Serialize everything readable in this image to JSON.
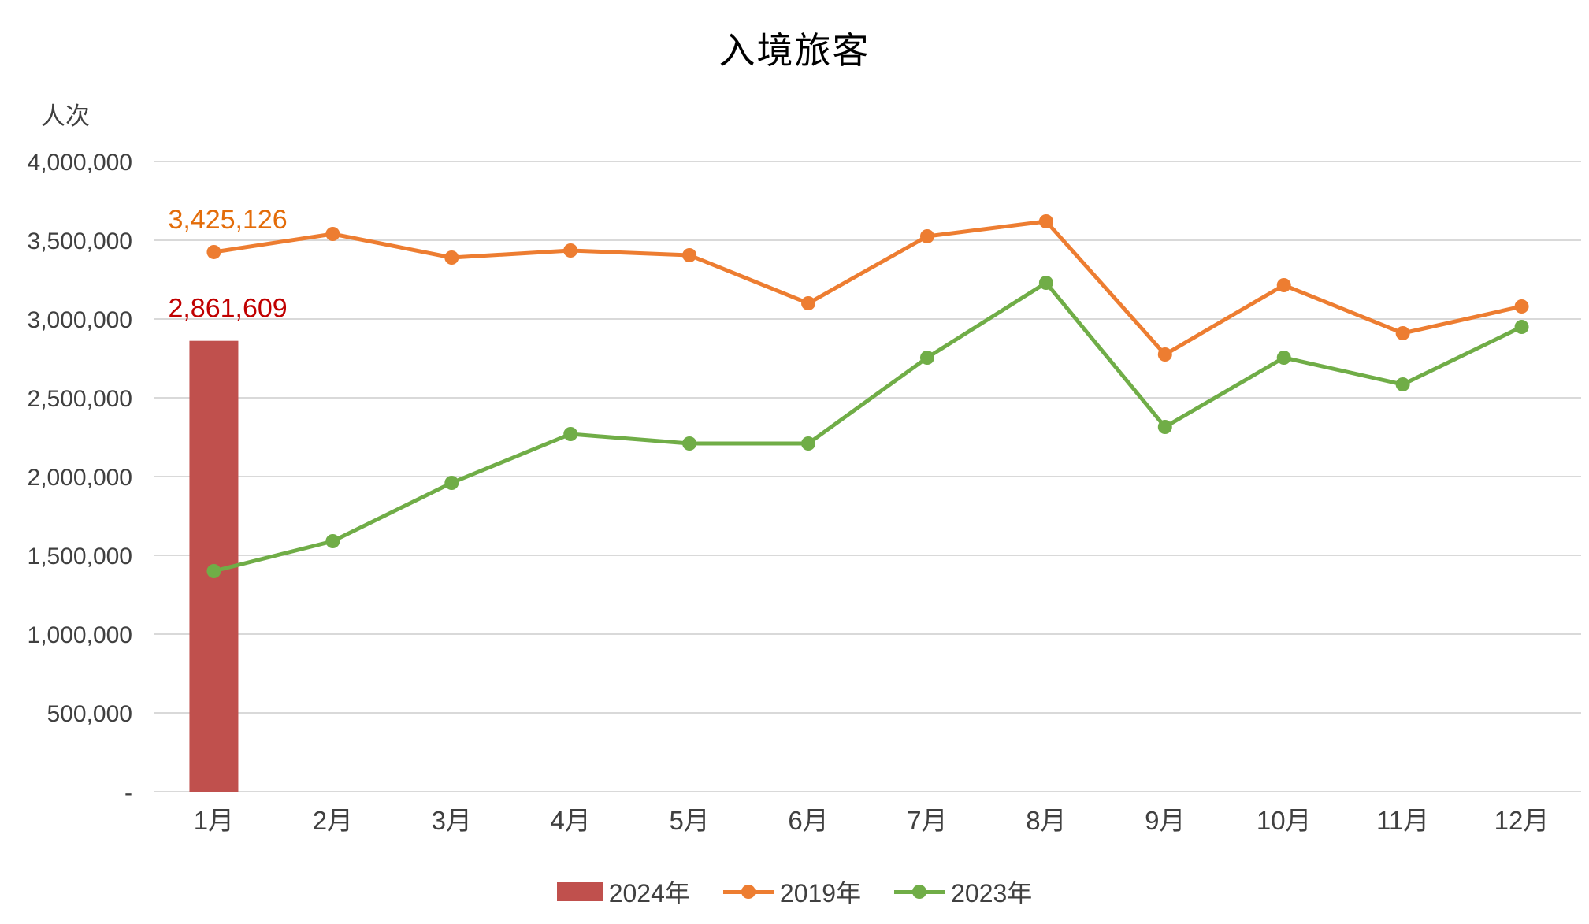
{
  "chart_data": {
    "type": "combo",
    "title": "入境旅客",
    "ylabel": "人次",
    "ylim": [
      0,
      4000000
    ],
    "ytick_step": 500000,
    "zero_tick_label": "-",
    "grid": true,
    "legend_position": "bottom",
    "categories": [
      "1月",
      "2月",
      "3月",
      "4月",
      "5月",
      "6月",
      "7月",
      "8月",
      "9月",
      "10月",
      "11月",
      "12月"
    ],
    "series": [
      {
        "name": "2024年",
        "type": "bar",
        "color": "#C0504D",
        "values": [
          2861609,
          null,
          null,
          null,
          null,
          null,
          null,
          null,
          null,
          null,
          null,
          null
        ]
      },
      {
        "name": "2019年",
        "type": "line",
        "color": "#ED7D31",
        "values": [
          3425126,
          3540000,
          3390000,
          3435000,
          3405000,
          3100000,
          3525000,
          3620000,
          2775000,
          3215000,
          2910000,
          3080000
        ]
      },
      {
        "name": "2023年",
        "type": "line",
        "color": "#70AD47",
        "values": [
          1400000,
          1590000,
          1960000,
          2270000,
          2210000,
          2210000,
          2755000,
          3230000,
          2315000,
          2755000,
          2585000,
          2950000
        ]
      }
    ],
    "annotations": [
      {
        "text": "3,425,126",
        "color": "#E36C09",
        "series": "2019年",
        "month_index": 0
      },
      {
        "text": "2,861,609",
        "color": "#C00000",
        "series": "2024年",
        "month_index": 0
      }
    ]
  }
}
